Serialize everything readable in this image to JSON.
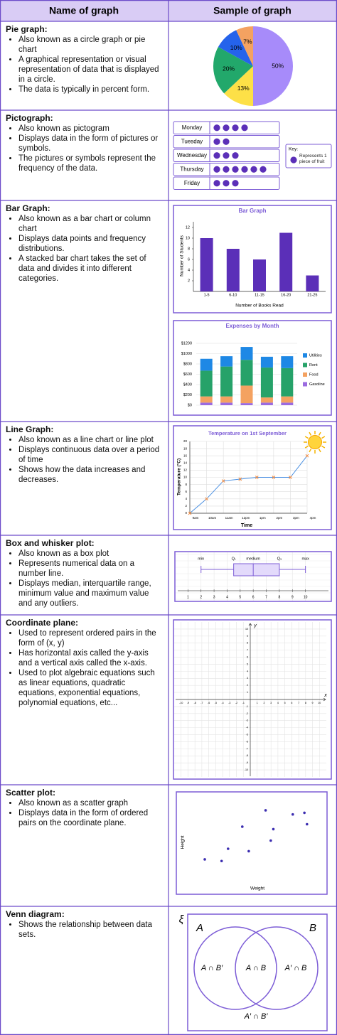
{
  "header": {
    "col1": "Name of graph",
    "col2": "Sample of graph"
  },
  "rows": [
    {
      "name": "Pie graph:",
      "bullets": [
        "Also known as a circle graph or pie chart",
        "A graphical representation or visual representation of data that is displayed in a circle.",
        "The data is typically in percent form."
      ],
      "sample": {
        "type": "pie",
        "values": [
          50,
          13,
          20,
          10,
          7
        ],
        "value_labels": [
          "50%",
          "13%",
          "20%",
          "10%",
          "7%"
        ],
        "colors": [
          "#a78bfa",
          "#fde047",
          "#22a86b",
          "#2563eb",
          "#f4a261"
        ]
      }
    },
    {
      "name": "Pictograph:",
      "bullets": [
        "Also known as pictogram",
        "Displays data in the form of pictures or symbols.",
        "The pictures or symbols represent the frequency of the data."
      ],
      "sample": {
        "type": "pictograph",
        "categories": [
          "Monday",
          "Tuesday",
          "Wednesday",
          "Thursday",
          "Friday"
        ],
        "values": [
          4,
          2,
          3,
          6,
          3
        ],
        "color": "#5b2fb8",
        "key_title": "Key:",
        "key_text": "Represents 1 piece of fruit"
      }
    },
    {
      "name": "Bar Graph:",
      "bullets": [
        "Also known as a bar chart or column chart",
        "Displays data points and frequency distributions.",
        "A stacked bar chart takes the set of data and divides it into different categories."
      ],
      "sample": [
        {
          "type": "bar",
          "title": "Bar Graph",
          "categories": [
            "1-5",
            "6-10",
            "11-15",
            "16-20",
            "21-25"
          ],
          "values": [
            10,
            8,
            6,
            11,
            3
          ],
          "color": "#5b2fb8",
          "ylim": [
            0,
            12
          ],
          "yticks": [
            2,
            4,
            6,
            8,
            10,
            12
          ],
          "ylabel": "Number of Students",
          "xlabel": "Number of Books Read"
        },
        {
          "type": "stacked_bar",
          "title": "Expenses by Month",
          "categories": [
            null,
            null,
            null,
            null,
            null
          ],
          "series": [
            {
              "name": "Utilities",
              "color": "#1e88e5",
              "values": [
                230,
                200,
                250,
                210,
                230
              ]
            },
            {
              "name": "Rent",
              "color": "#26a269",
              "values": [
                500,
                580,
                500,
                580,
                550
              ]
            },
            {
              "name": "Food",
              "color": "#f4a261",
              "values": [
                120,
                120,
                340,
                100,
                120
              ]
            },
            {
              "name": "Gasoline",
              "color": "#9b6be0",
              "values": [
                50,
                50,
                40,
                50,
                50
              ]
            }
          ],
          "ylim": [
            0,
            1200
          ],
          "yticks": [
            {
              "value": 0,
              "label": "$0"
            },
            {
              "value": 200,
              "label": "$200"
            },
            {
              "value": 400,
              "label": "$400"
            },
            {
              "value": 600,
              "label": "$600"
            },
            {
              "value": 800,
              "label": "$800"
            },
            {
              "value": 1000,
              "label": "$1000"
            },
            {
              "value": 1200,
              "label": "$1200"
            }
          ],
          "grid": true
        }
      ]
    },
    {
      "name": "Line Graph:",
      "bullets": [
        "Also known as a line chart or line plot",
        "Displays continuous data over a period of time",
        "Shows how the data increases and decreases."
      ],
      "sample": {
        "type": "line",
        "title": "Temperature on 1st September",
        "categories": [
          "9am",
          "10am",
          "11am",
          "12pm",
          "1pm",
          "2pm",
          "3pm",
          "4pm"
        ],
        "values": [
          0,
          4,
          9,
          9.5,
          10,
          10,
          10,
          16
        ],
        "color": "#4a90e2",
        "marker_color": "#f4893b",
        "ylim": [
          0,
          20
        ],
        "yticks": [
          0,
          2,
          4,
          6,
          8,
          10,
          12,
          14,
          16,
          18,
          20
        ],
        "ylabel": "Temperature (°C)",
        "xlabel": "Time",
        "grid": true
      }
    },
    {
      "name": "Box and whisker plot:",
      "bullets": [
        "Also known as a box plot",
        "Represents numerical data on a number line.",
        "Displays median, interquartile range, minimum value and maximum value and any outliers."
      ],
      "sample": {
        "type": "box",
        "labels": [
          "min",
          "Q₁",
          "medium",
          "Q₃",
          "max"
        ],
        "min": 2,
        "q1": 4.5,
        "median": 6,
        "q3": 8,
        "max": 10,
        "xlim": [
          0,
          11
        ],
        "xticks": [
          1,
          2,
          3,
          4,
          5,
          6,
          7,
          8,
          9,
          10
        ],
        "color": "#7c5cd6"
      }
    },
    {
      "name": "Coordinate plane:",
      "bullets": [
        "Used to represent ordered pairs in the form of (x, y)",
        "Has horizontal axis called the y-axis and a vertical axis called the x-axis.",
        "Used to plot algebraic equations such as linear equations, quadratic equations, exponential equations, polynomial equations, etc..."
      ],
      "sample": {
        "type": "coordinate",
        "xlabel": "x",
        "ylabel": "y",
        "xlim": [
          -11,
          11
        ],
        "ylim": [
          -11,
          11
        ],
        "xticks": [
          -10,
          -9,
          -8,
          -7,
          -6,
          -5,
          -4,
          -3,
          -2,
          -1,
          1,
          2,
          3,
          4,
          5,
          6,
          7,
          8,
          9,
          10
        ],
        "yticks": [
          -10,
          -9,
          -8,
          -7,
          -6,
          -5,
          -4,
          -3,
          -2,
          -1,
          1,
          2,
          3,
          4,
          5,
          6,
          7,
          8,
          9,
          10
        ],
        "grid": true
      }
    },
    {
      "name": "Scatter plot:",
      "bullets": [
        "Also known as a scatter graph",
        "Displays data in the form of ordered pairs on the coordinate plane."
      ],
      "sample": {
        "type": "scatter",
        "x": [
          1.1,
          2.4,
          2.9,
          4.0,
          4.5,
          5.8,
          6.2,
          6.4,
          7.9,
          8.8,
          9.0
        ],
        "y": [
          2.7,
          2.5,
          4.0,
          6.7,
          3.7,
          8.7,
          5.0,
          6.4,
          8.2,
          8.4,
          7.0
        ],
        "xlim": [
          0,
          10
        ],
        "ylim": [
          0,
          10
        ],
        "color": "#3b2db0",
        "xlabel": "Weight",
        "ylabel": "Height"
      }
    },
    {
      "name": "Venn diagram:",
      "bullets": [
        "Shows the relationship between data sets."
      ],
      "sample": {
        "type": "venn",
        "universe": "ξ",
        "set_a": "A",
        "set_b": "B",
        "regions": [
          "A ∩ B′",
          "A ∩ B",
          "A′ ∩ B",
          "A′ ∩ B′"
        ]
      }
    }
  ]
}
